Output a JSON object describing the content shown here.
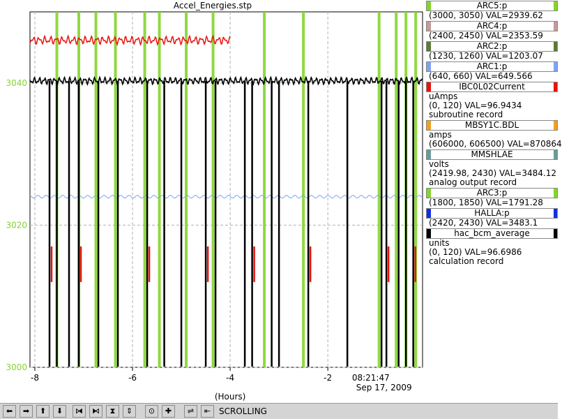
{
  "window": {
    "title": "Accel_Energies.stp"
  },
  "colors": {
    "ARC5": "#84d42c",
    "ARC4": "#c49a9a",
    "ARC2": "#5a7a3a",
    "ARC1": "#7fa3f0",
    "IBC0L02Current": "#e8120c",
    "MBSY1C": "#f0a020",
    "MMSHLAE": "#6a9a9a",
    "ARC3": "#84d42c",
    "HALLA": "#1030e0",
    "hac_bcm_average": "#000000"
  },
  "legend": [
    {
      "name": "ARC5:p",
      "color": "#84d42c",
      "lines": [
        "(3000, 3050) VAL=2939.62"
      ]
    },
    {
      "name": "ARC4:p",
      "color": "#c49a9a",
      "lines": [
        "(2400, 2450) VAL=2353.59"
      ]
    },
    {
      "name": "ARC2:p",
      "color": "#5a7a3a",
      "lines": [
        "(1230, 1260) VAL=1203.07"
      ]
    },
    {
      "name": "ARC1:p",
      "color": "#7fa3f0",
      "lines": [
        "(640, 660) VAL=649.566"
      ]
    },
    {
      "name": "IBC0L02Current",
      "color": "#e8120c",
      "lines": [
        "uAmps",
        "(0, 120) VAL=96.9434",
        "subroutine record"
      ]
    },
    {
      "name": "MBSY1C.BDL",
      "color": "#f0a020",
      "lines": [
        "amps",
        "(606000, 606500) VAL=870864"
      ]
    },
    {
      "name": "MMSHLAE",
      "color": "#6a9a9a",
      "lines": [
        "volts",
        "(2419.98, 2430)  VAL=3484.12",
        "analog output record"
      ]
    },
    {
      "name": "ARC3:p",
      "color": "#84d42c",
      "lines": [
        "(1800, 1850) VAL=1791.28"
      ]
    },
    {
      "name": "HALLA:p",
      "color": "#1030e0",
      "lines": [
        "(2420, 2430) VAL=3483.1"
      ]
    },
    {
      "name": "hac_bcm_average",
      "color": "#000000",
      "lines": [
        "units",
        "(0, 120) VAL=96.6986",
        "calculation record"
      ]
    }
  ],
  "toolbar": {
    "status": "SCROLLING",
    "buttons": [
      "arrow-left-icon",
      "arrow-right-icon",
      "arrow-up-icon",
      "arrow-down-icon",
      "zoom-in-x-icon",
      "zoom-out-x-icon",
      "zoom-in-y-icon",
      "zoom-out-y-icon",
      "record-icon",
      "add-icon",
      "autoscale-icon",
      "back-icon"
    ],
    "glyphs": [
      "⬅",
      "➡",
      "⬆",
      "⬇",
      "⧒",
      "⧑",
      "⧗",
      "⇕",
      "⊙",
      "✚",
      "⇌",
      "⇤"
    ]
  },
  "chart_data": {
    "type": "line",
    "title": "Accel_Energies.stp",
    "xlabel": "(Hours)",
    "ylabel": "",
    "x_ticks": [
      -8,
      -6,
      -4,
      -2
    ],
    "xlim": [
      -8.1,
      -0.06
    ],
    "y_ticks": [
      3000,
      3020,
      3040
    ],
    "ylim": [
      3000,
      3050
    ],
    "time_label": "08:21:47",
    "date_label": "Sep 17, 2009",
    "grid": true,
    "series": [
      {
        "name": "hac_bcm_average",
        "color": "#000000",
        "baseline": 3040.3,
        "dropouts": [
          -7.7,
          -7.55,
          -7.3,
          -7.1,
          -6.7,
          -6.3,
          -5.7,
          -5.35,
          -5.0,
          -4.5,
          -4.3,
          -3.7,
          -3.55,
          -3.15,
          -3.0,
          -2.4,
          -1.6,
          -0.9,
          -0.8,
          -0.55,
          -0.4,
          -0.25
        ]
      },
      {
        "name": "IBC0L02Current",
        "color": "#e8120c",
        "baseline": 3046.0,
        "end_x": -4.0
      },
      {
        "name": "ARC1:p",
        "color": "#7fa3f0",
        "baseline": 3024.0
      },
      {
        "name": "ARC5:p",
        "color": "#84d42c",
        "spikes": [
          -7.55,
          -7.1,
          -6.75,
          -6.35,
          -5.75,
          -5.45,
          -4.9,
          -4.35,
          -3.3,
          -2.5,
          -0.95,
          -0.6,
          -0.4,
          -0.2
        ]
      }
    ]
  }
}
